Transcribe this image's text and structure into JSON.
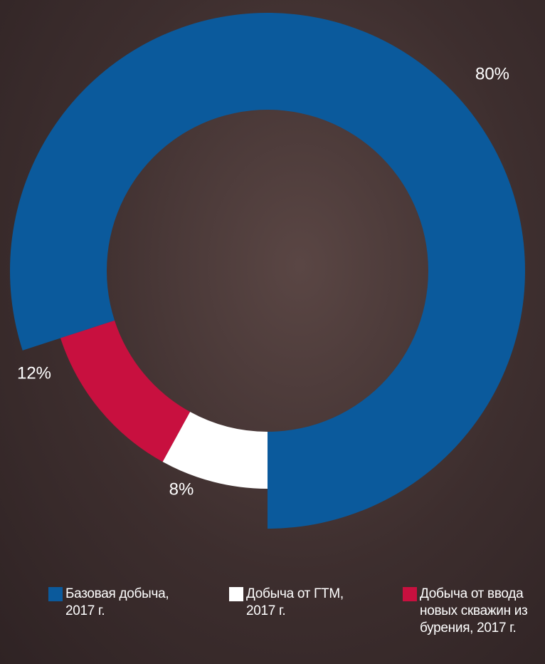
{
  "chart_data": {
    "type": "donut",
    "categories": [
      "Базовая добыча, 2017 г.",
      "Добыча от ГТМ, 2017 г.",
      "Добыча от ввода новых скважин из бурения, 2017 г."
    ],
    "values": [
      80,
      8,
      12
    ],
    "value_labels": [
      "80%",
      "8%",
      "12%"
    ],
    "colors": [
      "#0b5a9c",
      "#ffffff",
      "#c8103f"
    ]
  }
}
